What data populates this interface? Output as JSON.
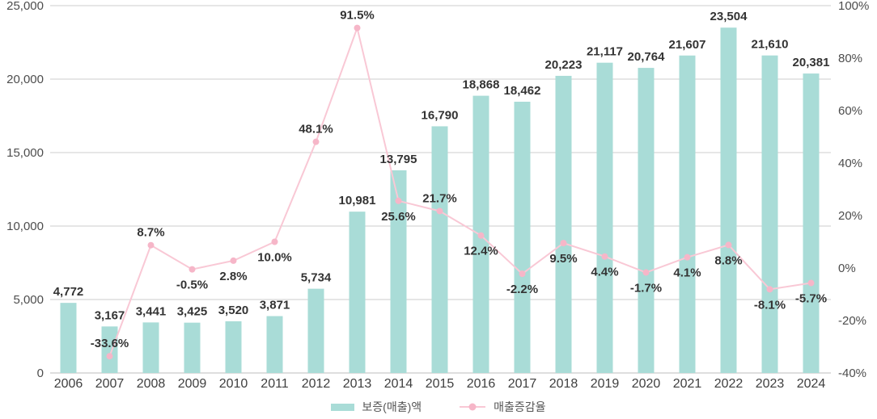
{
  "chart_data": {
    "type": "bar+line",
    "categories": [
      "2006",
      "2007",
      "2008",
      "2009",
      "2010",
      "2011",
      "2012",
      "2013",
      "2014",
      "2015",
      "2016",
      "2017",
      "2018",
      "2019",
      "2020",
      "2021",
      "2022",
      "2023",
      "2024"
    ],
    "series": [
      {
        "name": "보증(매출)액",
        "type": "bar",
        "axis": "left",
        "values": [
          4772,
          3167,
          3441,
          3425,
          3520,
          3871,
          5734,
          10981,
          13795,
          16790,
          18868,
          18462,
          20223,
          21117,
          20764,
          21607,
          23504,
          21610,
          20381
        ],
        "labels": [
          "4,772",
          "3,167",
          "3,441",
          "3,425",
          "3,520",
          "3,871",
          "5,734",
          "10,981",
          "13,795",
          "16,790",
          "18,868",
          "18,462",
          "20,223",
          "21,117",
          "20,764",
          "21,607",
          "23,504",
          "21,610",
          "20,381"
        ]
      },
      {
        "name": "매출증감율",
        "type": "line",
        "axis": "right",
        "values": [
          null,
          -33.6,
          8.7,
          -0.5,
          2.8,
          10.0,
          48.1,
          91.5,
          25.6,
          21.7,
          12.4,
          -2.2,
          9.5,
          4.4,
          -1.7,
          4.1,
          8.8,
          -8.1,
          -5.7
        ],
        "labels": [
          "",
          "-33.6%",
          "8.7%",
          "-0.5%",
          "2.8%",
          "10.0%",
          "48.1%",
          "91.5%",
          "25.6%",
          "21.7%",
          "12.4%",
          "-2.2%",
          "9.5%",
          "4.4%",
          "-1.7%",
          "4.1%",
          "8.8%",
          "-8.1%",
          "-5.7%"
        ],
        "label_positions": [
          "",
          "above",
          "above",
          "below",
          "below",
          "below",
          "above",
          "above",
          "below",
          "above",
          "below",
          "below",
          "below",
          "below",
          "below",
          "below",
          "below",
          "below",
          "below"
        ]
      }
    ],
    "left_axis": {
      "min": 0,
      "max": 25000,
      "ticks": [
        {
          "label": "25,000",
          "value": 25000
        },
        {
          "label": "20,000",
          "value": 20000
        },
        {
          "label": "15,000",
          "value": 15000
        },
        {
          "label": "10,000",
          "value": 10000
        },
        {
          "label": "5,000",
          "value": 5000
        },
        {
          "label": "0",
          "value": 0
        }
      ]
    },
    "right_axis": {
      "min": -40,
      "max": 100,
      "ticks": [
        {
          "label": "100%",
          "value": 100
        },
        {
          "label": "80%",
          "value": 80
        },
        {
          "label": "60%",
          "value": 60
        },
        {
          "label": "40%",
          "value": 40
        },
        {
          "label": "20%",
          "value": 20
        },
        {
          "label": "0%",
          "value": 0
        },
        {
          "label": "-20%",
          "value": -20
        },
        {
          "label": "-40%",
          "value": -40
        }
      ]
    },
    "grid": "horizontal",
    "legend_position": "bottom",
    "colors": {
      "bar": "#a9dcd7",
      "line": "#f9c8d5",
      "marker": "#f6b6c8",
      "gridline": "#cccccc",
      "baseline": "#bdbdbd",
      "axis_text": "#4d4d4d",
      "data_label": "#333333"
    }
  },
  "legend": {
    "items": [
      {
        "label": "보증(매출)액",
        "type": "bar"
      },
      {
        "label": "매출증감율",
        "type": "line"
      }
    ]
  }
}
